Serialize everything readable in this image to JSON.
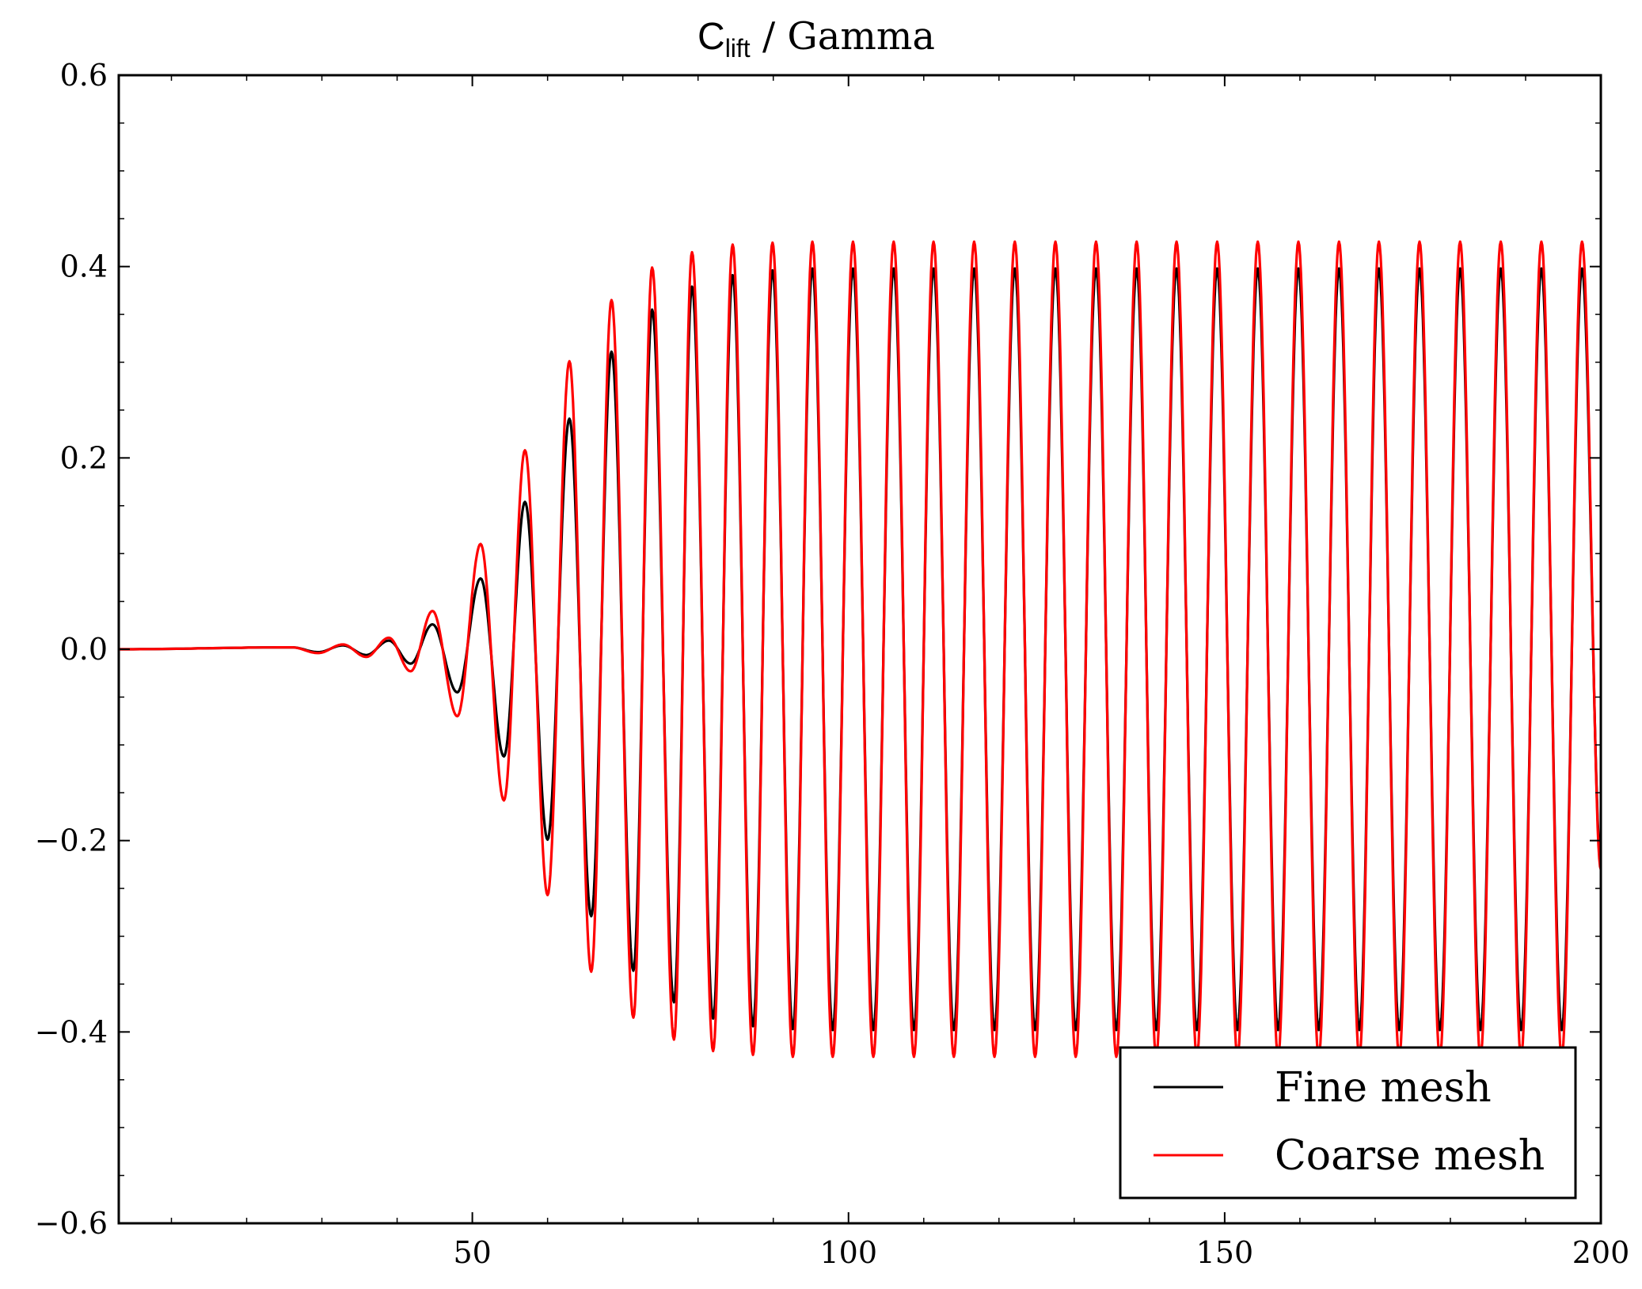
{
  "chart_data": {
    "type": "line",
    "title": {
      "main": "C",
      "subscript": "lift",
      "rest": " / Gamma"
    },
    "xlabel": "",
    "ylabel": "",
    "xlim": [
      3,
      200
    ],
    "ylim": [
      -0.6,
      0.6
    ],
    "xticks": [
      50,
      100,
      150,
      200
    ],
    "xtick_labels": [
      "50",
      "100",
      "150",
      "200"
    ],
    "yticks": [
      -0.6,
      -0.4,
      -0.2,
      0.0,
      0.2,
      0.4,
      0.6
    ],
    "ytick_labels": [
      "−0.6",
      "−0.4",
      "−0.2",
      "0.0",
      "0.2",
      "0.4",
      "0.6"
    ],
    "grid": false,
    "legend_position": "bottom-right",
    "series": [
      {
        "name": "Fine mesh",
        "color": "#000000",
        "peaks": [
          [
            26.0,
            0.002
          ],
          [
            29.5,
            -0.003
          ],
          [
            32.8,
            0.004
          ],
          [
            35.9,
            -0.006
          ],
          [
            38.9,
            0.009
          ],
          [
            41.8,
            -0.015
          ],
          [
            44.7,
            0.026
          ],
          [
            48.0,
            -0.045
          ],
          [
            51.1,
            0.074
          ],
          [
            54.2,
            -0.112
          ],
          [
            57.0,
            0.154
          ],
          [
            60.0,
            -0.199
          ],
          [
            62.9,
            0.241
          ],
          [
            65.8,
            -0.279
          ],
          [
            68.5,
            0.311
          ],
          [
            71.4,
            -0.336
          ],
          [
            73.9,
            0.355
          ],
          [
            76.8,
            -0.369
          ],
          [
            79.2,
            0.379
          ],
          [
            82.0,
            -0.386
          ],
          [
            84.6,
            0.391
          ],
          [
            87.3,
            -0.394
          ],
          [
            89.9,
            0.396
          ],
          [
            92.6,
            -0.397
          ],
          [
            95.2,
            0.398
          ],
          [
            97.9,
            -0.398
          ],
          [
            100.6,
            0.398
          ],
          [
            103.3,
            -0.398
          ],
          [
            106.0,
            0.398
          ],
          [
            108.7,
            -0.398
          ],
          [
            111.3,
            0.398
          ],
          [
            114.0,
            -0.398
          ],
          [
            116.7,
            0.398
          ],
          [
            119.4,
            -0.398
          ],
          [
            122.1,
            0.398
          ],
          [
            124.8,
            -0.398
          ],
          [
            127.5,
            0.398
          ],
          [
            130.2,
            -0.398
          ],
          [
            132.9,
            0.398
          ],
          [
            135.6,
            -0.398
          ],
          [
            138.3,
            0.398
          ],
          [
            140.9,
            -0.398
          ],
          [
            143.6,
            0.398
          ],
          [
            146.3,
            -0.398
          ],
          [
            149.0,
            0.398
          ],
          [
            151.7,
            -0.398
          ],
          [
            154.4,
            0.398
          ],
          [
            157.1,
            -0.398
          ],
          [
            159.8,
            0.398
          ],
          [
            162.5,
            -0.398
          ],
          [
            165.2,
            0.398
          ],
          [
            167.9,
            -0.398
          ],
          [
            170.5,
            0.398
          ],
          [
            173.2,
            -0.398
          ],
          [
            175.9,
            0.398
          ],
          [
            178.6,
            -0.398
          ],
          [
            181.3,
            0.398
          ],
          [
            184.0,
            -0.398
          ],
          [
            186.7,
            0.398
          ],
          [
            189.4,
            -0.398
          ],
          [
            192.1,
            0.398
          ],
          [
            194.8,
            -0.398
          ],
          [
            197.5,
            0.398
          ],
          [
            200.0,
            -0.22
          ]
        ]
      },
      {
        "name": "Coarse mesh",
        "color": "#ff0000",
        "peaks": [
          [
            26.0,
            0.002
          ],
          [
            29.5,
            -0.004
          ],
          [
            32.8,
            0.005
          ],
          [
            35.9,
            -0.008
          ],
          [
            38.9,
            0.012
          ],
          [
            41.8,
            -0.023
          ],
          [
            44.7,
            0.04
          ],
          [
            48.0,
            -0.07
          ],
          [
            51.1,
            0.11
          ],
          [
            54.2,
            -0.158
          ],
          [
            57.0,
            0.208
          ],
          [
            60.0,
            -0.257
          ],
          [
            62.9,
            0.301
          ],
          [
            65.8,
            -0.337
          ],
          [
            68.5,
            0.365
          ],
          [
            71.4,
            -0.385
          ],
          [
            73.9,
            0.399
          ],
          [
            76.8,
            -0.408
          ],
          [
            79.2,
            0.415
          ],
          [
            82.0,
            -0.42
          ],
          [
            84.6,
            0.423
          ],
          [
            87.3,
            -0.424
          ],
          [
            89.9,
            0.425
          ],
          [
            92.6,
            -0.426
          ],
          [
            95.2,
            0.426
          ],
          [
            97.9,
            -0.426
          ],
          [
            100.6,
            0.426
          ],
          [
            103.3,
            -0.426
          ],
          [
            106.0,
            0.426
          ],
          [
            108.7,
            -0.426
          ],
          [
            111.3,
            0.426
          ],
          [
            114.0,
            -0.426
          ],
          [
            116.7,
            0.426
          ],
          [
            119.4,
            -0.426
          ],
          [
            122.1,
            0.426
          ],
          [
            124.8,
            -0.426
          ],
          [
            127.5,
            0.426
          ],
          [
            130.2,
            -0.426
          ],
          [
            132.9,
            0.426
          ],
          [
            135.6,
            -0.426
          ],
          [
            138.3,
            0.426
          ],
          [
            140.9,
            -0.426
          ],
          [
            143.6,
            0.426
          ],
          [
            146.3,
            -0.426
          ],
          [
            149.0,
            0.426
          ],
          [
            151.7,
            -0.426
          ],
          [
            154.4,
            0.426
          ],
          [
            157.1,
            -0.426
          ],
          [
            159.8,
            0.426
          ],
          [
            162.5,
            -0.426
          ],
          [
            165.2,
            0.426
          ],
          [
            167.9,
            -0.426
          ],
          [
            170.5,
            0.426
          ],
          [
            173.2,
            -0.426
          ],
          [
            175.9,
            0.426
          ],
          [
            178.6,
            -0.426
          ],
          [
            181.3,
            0.426
          ],
          [
            184.0,
            -0.426
          ],
          [
            186.7,
            0.426
          ],
          [
            189.4,
            -0.426
          ],
          [
            192.1,
            0.426
          ],
          [
            194.8,
            -0.426
          ],
          [
            197.5,
            0.426
          ],
          [
            200.0,
            -0.23
          ]
        ]
      }
    ],
    "legend": [
      {
        "label": "Fine mesh",
        "color": "#000000"
      },
      {
        "label": "Coarse mesh",
        "color": "#ff0000"
      }
    ]
  }
}
